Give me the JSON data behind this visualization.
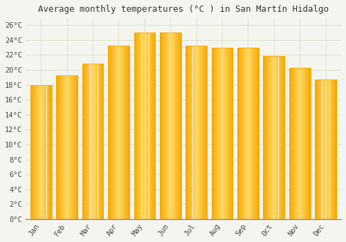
{
  "title": "Average monthly temperatures (°C ) in San Martín Hidalgo",
  "months": [
    "Jan",
    "Feb",
    "Mar",
    "Apr",
    "May",
    "Jun",
    "Jul",
    "Aug",
    "Sep",
    "Oct",
    "Nov",
    "Dec"
  ],
  "values": [
    18.0,
    19.3,
    20.8,
    23.2,
    25.0,
    25.0,
    23.2,
    23.0,
    23.0,
    21.8,
    20.3,
    18.7
  ],
  "bar_color_center": "#FFD966",
  "bar_color_edge": "#F5A800",
  "background_color": "#F5F5F0",
  "plot_bg_color": "#F5F5F0",
  "grid_color": "#DDDDCC",
  "ylim": [
    0,
    27
  ],
  "yticks": [
    0,
    2,
    4,
    6,
    8,
    10,
    12,
    14,
    16,
    18,
    20,
    22,
    24,
    26
  ],
  "title_fontsize": 9,
  "tick_fontsize": 7.5,
  "tick_font": "monospace",
  "bar_width": 0.82
}
